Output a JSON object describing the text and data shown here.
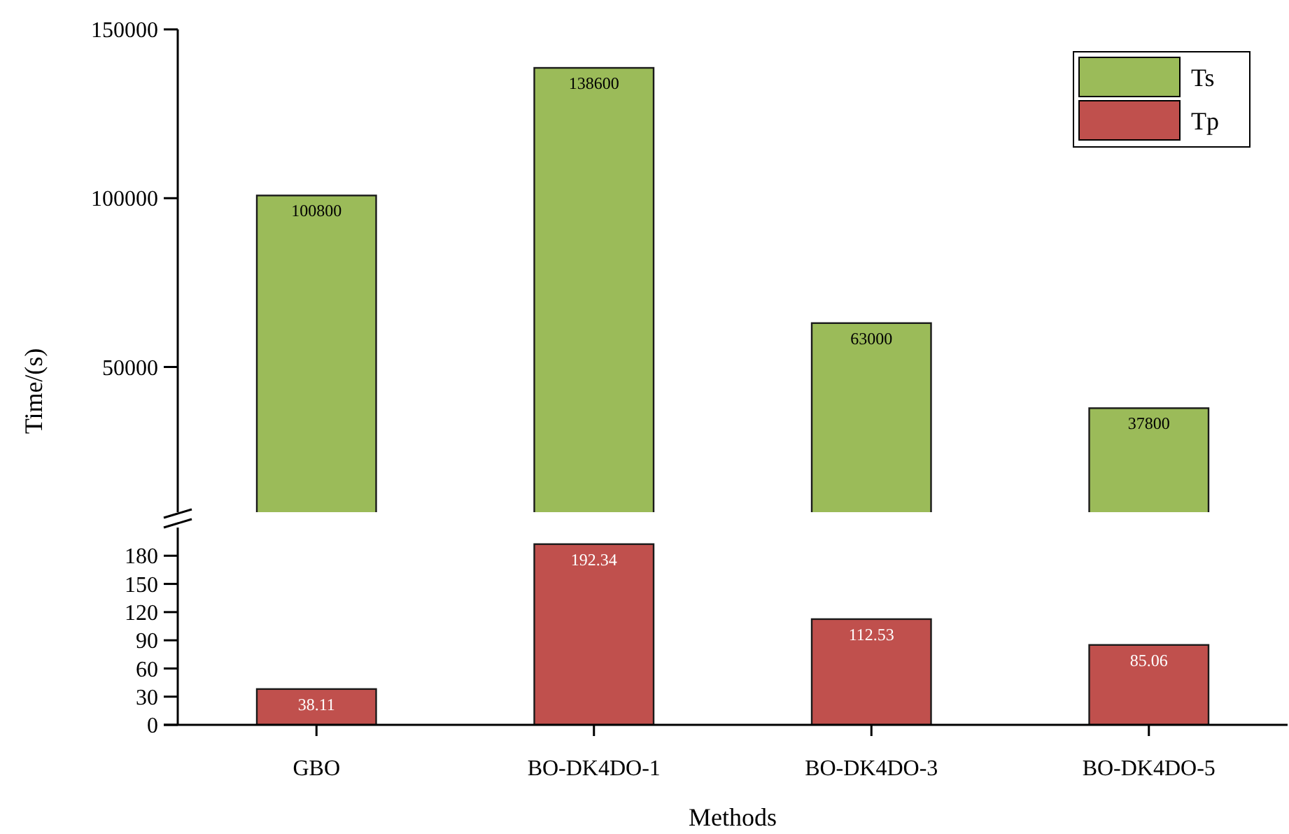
{
  "chart_data": [
    {
      "type": "bar",
      "ylabel": "Time/(s)",
      "categories": [
        null,
        null,
        null,
        null
      ],
      "ylim": [
        7000,
        150000
      ],
      "yticks": [
        50000,
        100000,
        150000
      ],
      "tick_labels": "y",
      "legend": "top right",
      "series": [
        {
          "name": "Ts",
          "color": "#9bbb59",
          "values": [
            100800,
            138600,
            63000,
            37800
          ],
          "value_labels": [
            "100800",
            "138600",
            "63000",
            "37800"
          ]
        }
      ]
    },
    {
      "type": "bar",
      "xlabel": "Methods",
      "categories": [
        "GBO",
        "BO-DK4DO-1",
        "BO-DK4DO-3",
        "BO-DK4DO-5"
      ],
      "ylim": [
        0,
        210
      ],
      "yticks": [
        0,
        30,
        60,
        90,
        120,
        150,
        180
      ],
      "legend": "top right",
      "series": [
        {
          "name": "Tp",
          "color": "#c0504d",
          "values": [
            38.11,
            192.34,
            112.53,
            85.06
          ],
          "value_labels": [
            "38.11",
            "192.34",
            "112.53",
            "85.06"
          ]
        }
      ]
    }
  ]
}
